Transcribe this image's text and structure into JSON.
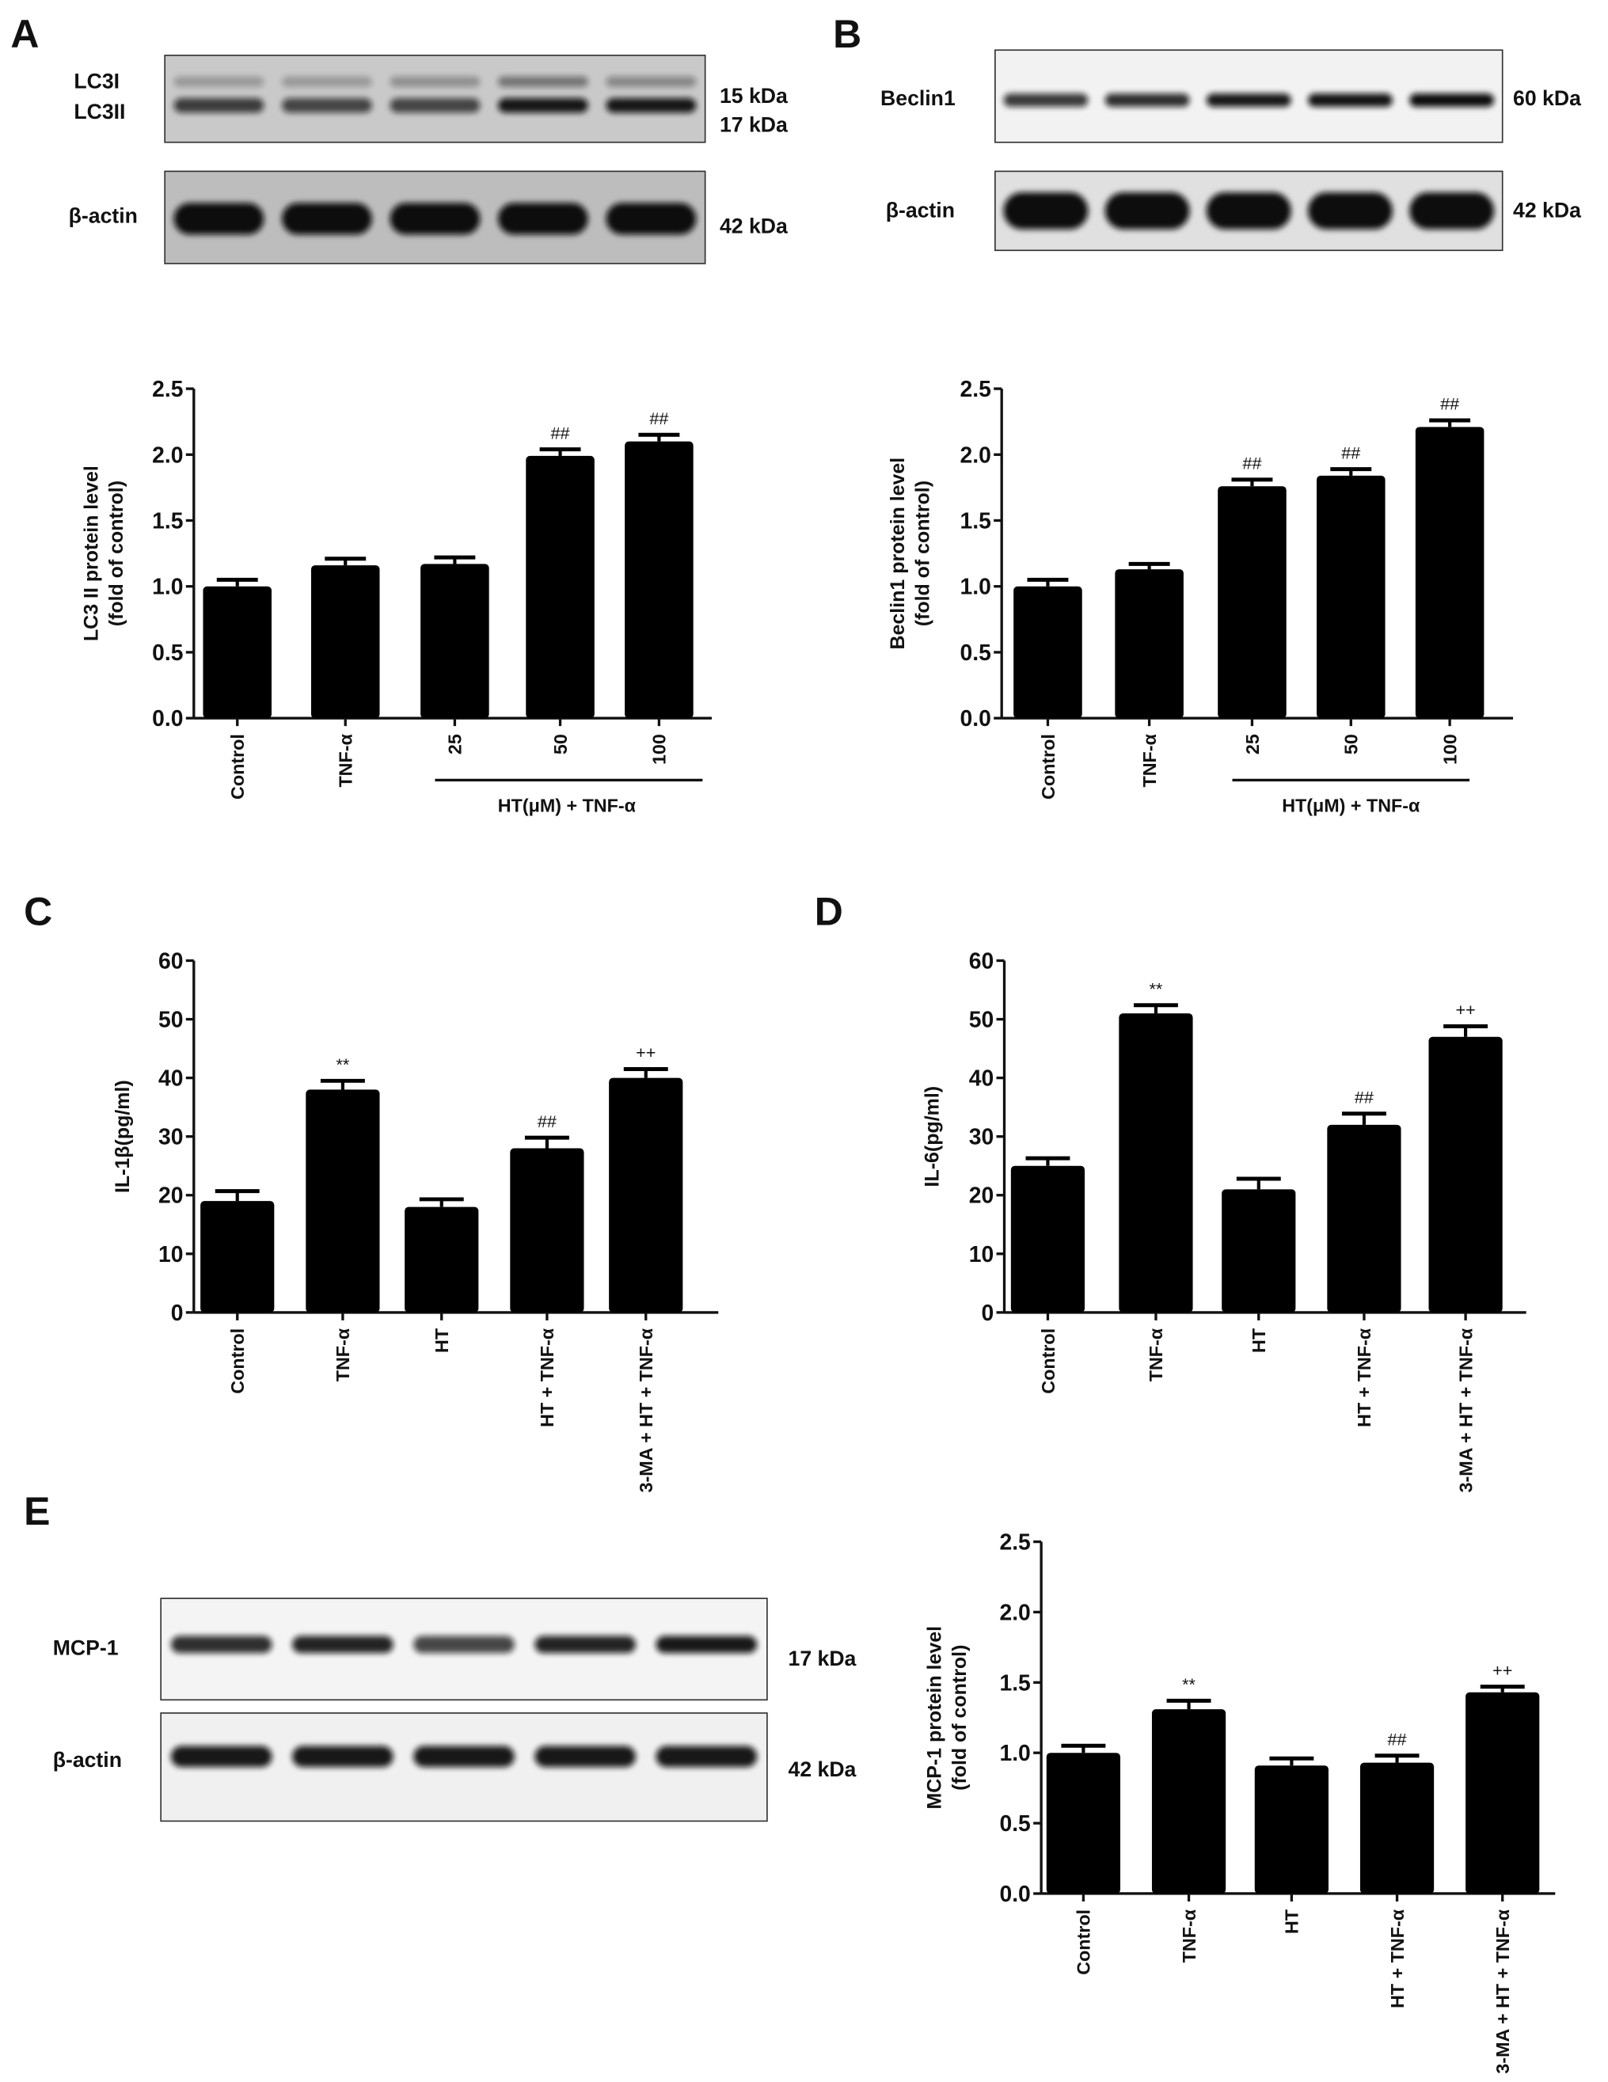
{
  "panels": {
    "A": {
      "letter": "A",
      "blots": [
        {
          "labels": [
            "LC3I",
            "LC3II"
          ],
          "kda": [
            "15 kDa",
            "17 kDa"
          ]
        },
        {
          "labels": [
            "β-actin"
          ],
          "kda": [
            "42 kDa"
          ]
        }
      ]
    },
    "B": {
      "letter": "B",
      "blots": [
        {
          "labels": [
            "Beclin1"
          ],
          "kda": [
            "60 kDa"
          ]
        },
        {
          "labels": [
            "β-actin"
          ],
          "kda": [
            "42 kDa"
          ]
        }
      ]
    },
    "C": {
      "letter": "C"
    },
    "D": {
      "letter": "D"
    },
    "E": {
      "letter": "E",
      "blots": [
        {
          "labels": [
            "MCP-1"
          ],
          "kda": [
            "17 kDa"
          ]
        },
        {
          "labels": [
            "β-actin"
          ],
          "kda": [
            "42 kDa"
          ]
        }
      ]
    }
  },
  "colors": {
    "bar": "#000000",
    "annotation_gray": "#8a8a8a",
    "annotation_black": "#222222"
  },
  "chart_data": [
    {
      "panel": "A",
      "type": "bar",
      "categories": [
        "Control",
        "TNF-α",
        "25",
        "50",
        "100"
      ],
      "values": [
        1.0,
        1.16,
        1.17,
        1.99,
        2.1
      ],
      "errors": [
        0.05,
        0.05,
        0.05,
        0.05,
        0.05
      ],
      "annotations": [
        "",
        "",
        "",
        "##",
        "##"
      ],
      "ylabel": [
        "LC3 II protein level",
        "(fold of control)"
      ],
      "group_label": "HT(μM) + TNF-α",
      "ylim": [
        0,
        2.5
      ],
      "yticks": [
        "0.0",
        "0.5",
        "1.0",
        "1.5",
        "2.0",
        "2.5"
      ],
      "grid": false
    },
    {
      "panel": "B",
      "type": "bar",
      "categories": [
        "Control",
        "TNF-α",
        "25",
        "50",
        "100"
      ],
      "values": [
        1.0,
        1.13,
        1.76,
        1.84,
        2.21
      ],
      "errors": [
        0.05,
        0.04,
        0.05,
        0.05,
        0.05
      ],
      "annotations": [
        "",
        "",
        "##",
        "##",
        "##"
      ],
      "ylabel": [
        "Beclin1 protein level",
        "(fold of control)"
      ],
      "group_label": "HT(μM) + TNF-α",
      "ylim": [
        0,
        2.5
      ],
      "yticks": [
        "0.0",
        "0.5",
        "1.0",
        "1.5",
        "2.0",
        "2.5"
      ],
      "grid": false
    },
    {
      "panel": "C",
      "type": "bar",
      "categories": [
        "Control",
        "TNF-α",
        "HT",
        "HT + TNF-α",
        "3-MA + HT + TNF-α"
      ],
      "values": [
        19,
        38,
        18,
        28,
        40
      ],
      "errors": [
        1.7,
        1.5,
        1.3,
        1.8,
        1.5
      ],
      "annotations": [
        "",
        "**",
        "",
        "##",
        "++"
      ],
      "ylabel": [
        "IL-1β(pg/ml)"
      ],
      "ylim": [
        0,
        60
      ],
      "yticks": [
        "0",
        "10",
        "20",
        "30",
        "40",
        "50",
        "60"
      ],
      "grid": false
    },
    {
      "panel": "D",
      "type": "bar",
      "categories": [
        "Control",
        "TNF-α",
        "HT",
        "HT + TNF-α",
        "3-MA + HT + TNF-α"
      ],
      "values": [
        25,
        51,
        21,
        32,
        47
      ],
      "errors": [
        1.3,
        1.4,
        1.8,
        1.9,
        1.8
      ],
      "annotations": [
        "",
        "**",
        "",
        "##",
        "++"
      ],
      "ylabel": [
        "IL-6(pg/ml)"
      ],
      "ylim": [
        0,
        60
      ],
      "yticks": [
        "0",
        "10",
        "20",
        "30",
        "40",
        "50",
        "60"
      ],
      "grid": false
    },
    {
      "panel": "E",
      "type": "bar",
      "categories": [
        "Control",
        "TNF-α",
        "HT",
        "HT + TNF-α",
        "3-MA + HT + TNF-α"
      ],
      "values": [
        1.0,
        1.31,
        0.91,
        0.93,
        1.43
      ],
      "errors": [
        0.05,
        0.06,
        0.05,
        0.05,
        0.04
      ],
      "annotations": [
        "",
        "**",
        "",
        "##",
        "++"
      ],
      "ylabel": [
        "MCP-1 protein level",
        "(fold of control)"
      ],
      "ylim": [
        0,
        2.5
      ],
      "yticks": [
        "0.0",
        "0.5",
        "1.0",
        "1.5",
        "2.0",
        "2.5"
      ],
      "grid": false
    }
  ]
}
